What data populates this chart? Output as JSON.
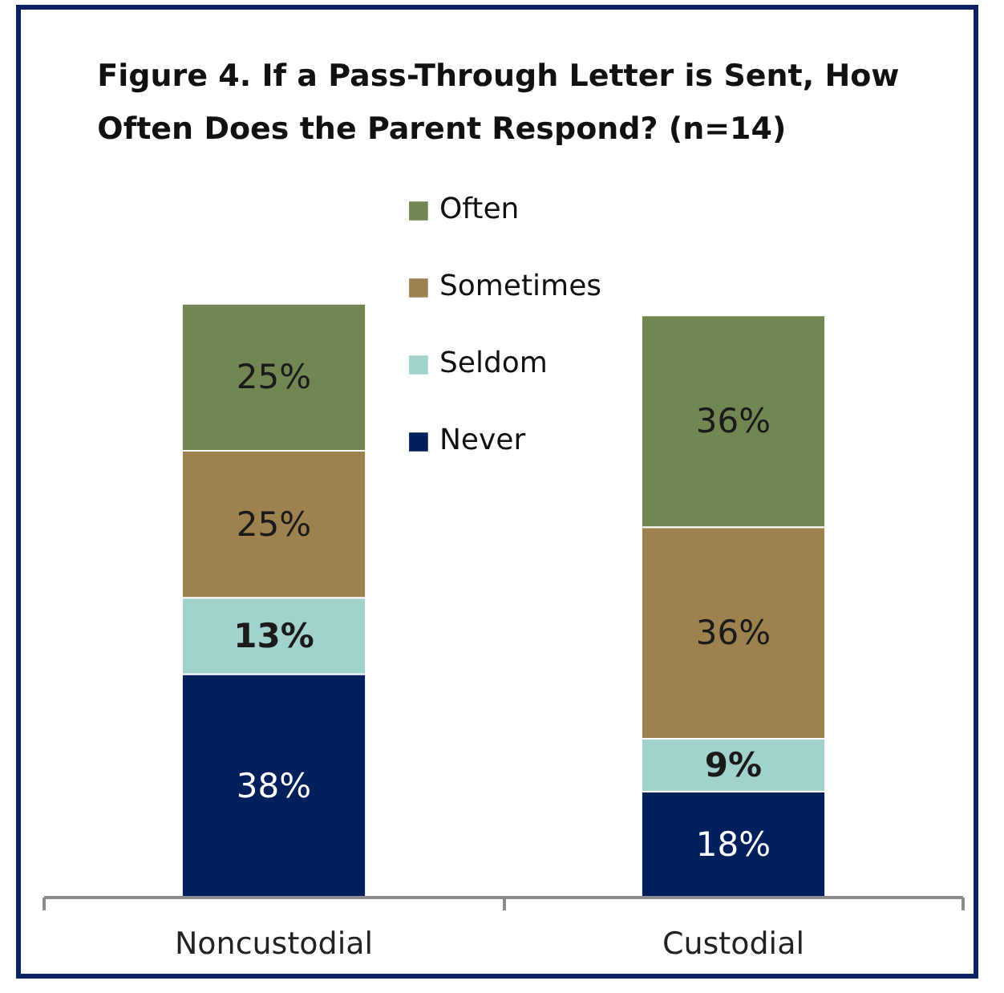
{
  "chart_data": {
    "type": "bar",
    "title": "Figure 4.  If a Pass-Through Letter is Sent, How Often Does the Parent Respond?  (n=14)",
    "categories": [
      "Noncustodial",
      "Custodial"
    ],
    "stacked": true,
    "legend": "top",
    "series": [
      {
        "name": "Never",
        "color": "#001f5b",
        "values": [
          38,
          18
        ],
        "value_labels": [
          "38%",
          "18%"
        ]
      },
      {
        "name": "Seldom",
        "color": "#a1d2cc",
        "values": [
          13,
          9
        ],
        "value_labels": [
          "13%",
          "9%"
        ]
      },
      {
        "name": "Sometimes",
        "color": "#9d814f",
        "values": [
          25,
          36
        ],
        "value_labels": [
          "25%",
          "36%"
        ]
      },
      {
        "name": "Often",
        "color": "#718650",
        "values": [
          25,
          36
        ],
        "value_labels": [
          "25%",
          "36%"
        ]
      }
    ]
  }
}
